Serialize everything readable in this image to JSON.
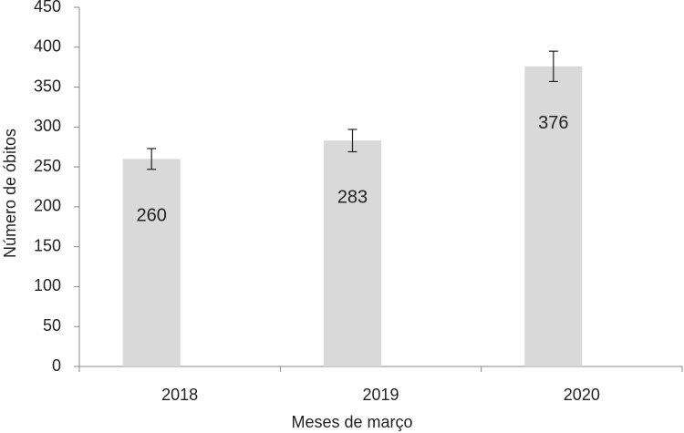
{
  "chart_data": {
    "type": "bar",
    "categories": [
      "2018",
      "2019",
      "2020"
    ],
    "values": [
      260,
      283,
      376
    ],
    "errors": [
      13,
      14,
      19
    ],
    "color": "#d9d9d9",
    "ylim": [
      0,
      450
    ],
    "yticks": [
      0,
      50,
      100,
      150,
      200,
      250,
      300,
      350,
      400,
      450
    ],
    "ylabel": "Número de óbitos",
    "xlabel": "Meses de março",
    "grid": false
  }
}
